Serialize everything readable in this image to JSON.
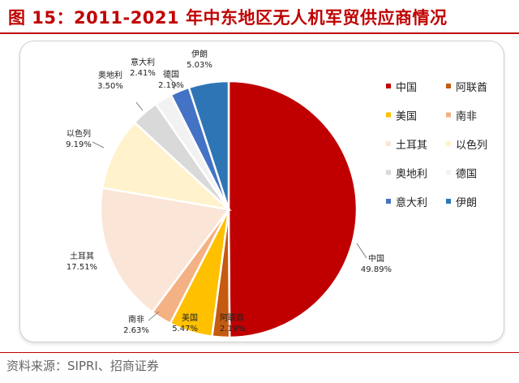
{
  "header": {
    "title": "图 15：2011-2021 年中东地区无人机军贸供应商情况"
  },
  "footer": {
    "source": "资料来源：SIPRI、招商证券"
  },
  "chart_data": {
    "type": "pie",
    "title": "图 15：2011-2021 年中东地区无人机军贸供应商情况",
    "legend_position": "right",
    "slices": [
      {
        "name": "中国",
        "value": 49.89,
        "label": "49.89%",
        "color": "#c00000"
      },
      {
        "name": "阿联酋",
        "value": 2.19,
        "label": "2.19%",
        "color": "#c55a11"
      },
      {
        "name": "美国",
        "value": 5.47,
        "label": "5.47%",
        "color": "#ffc000"
      },
      {
        "name": "南非",
        "value": 2.63,
        "label": "2.63%",
        "color": "#f4b183"
      },
      {
        "name": "土耳其",
        "value": 17.51,
        "label": "17.51%",
        "color": "#fbe5d6"
      },
      {
        "name": "以色列",
        "value": 9.19,
        "label": "9.19%",
        "color": "#fff2cc"
      },
      {
        "name": "奥地利",
        "value": 3.5,
        "label": "3.50%",
        "color": "#d9d9d9"
      },
      {
        "name": "德国",
        "value": 2.19,
        "label": "2.19%",
        "color": "#f2f2f2"
      },
      {
        "name": "意大利",
        "value": 2.41,
        "label": "2.41%",
        "color": "#4472c4"
      },
      {
        "name": "伊朗",
        "value": 5.03,
        "label": "5.03%",
        "color": "#2e75b6"
      }
    ]
  }
}
